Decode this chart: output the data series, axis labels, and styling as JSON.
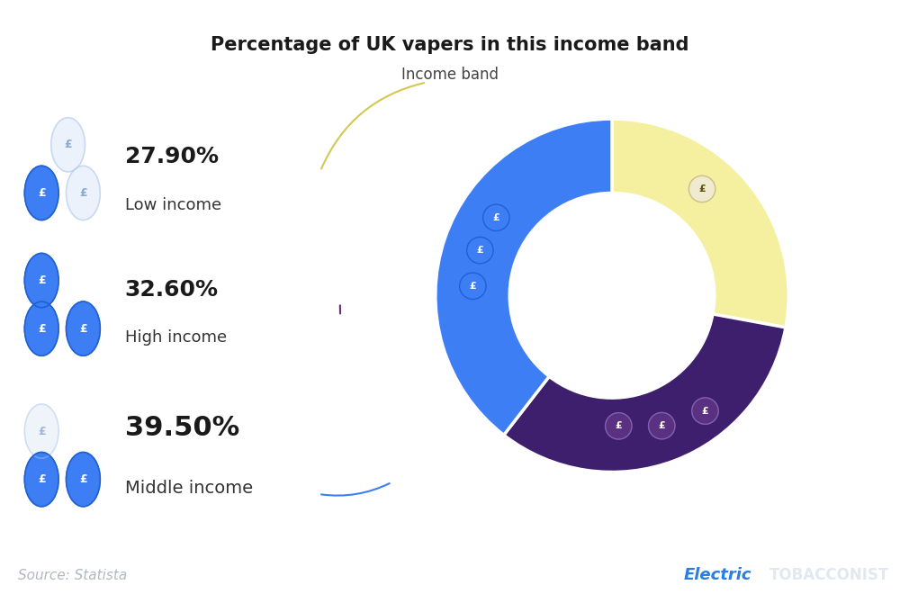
{
  "title": "Percentage of UK vapers in this income band",
  "subtitle": "Income band",
  "segments": [
    {
      "label": "Low income",
      "pct": 27.9,
      "color": "#f5f0a0",
      "text_color": "#1a1a2e"
    },
    {
      "label": "High income",
      "pct": 32.6,
      "color": "#3d1f6e",
      "text_color": "#ffffff"
    },
    {
      "label": "Middle income",
      "pct": 39.5,
      "color": "#3d7ef5",
      "text_color": "#ffffff"
    }
  ],
  "start_angle": 90,
  "donut_width": 0.42,
  "background_color": "#ffffff",
  "footer_bg": "#0d1b2e",
  "footer_text": "Source: Statista",
  "footer_text_color": "#b0b8c1",
  "brand_electric_color": "#2a7de1",
  "brand_tobacconist_color": "#e0e8f0",
  "coin_blue": "#3d7ef5",
  "coin_light": "#c8d8f0",
  "pound_symbol": "£"
}
